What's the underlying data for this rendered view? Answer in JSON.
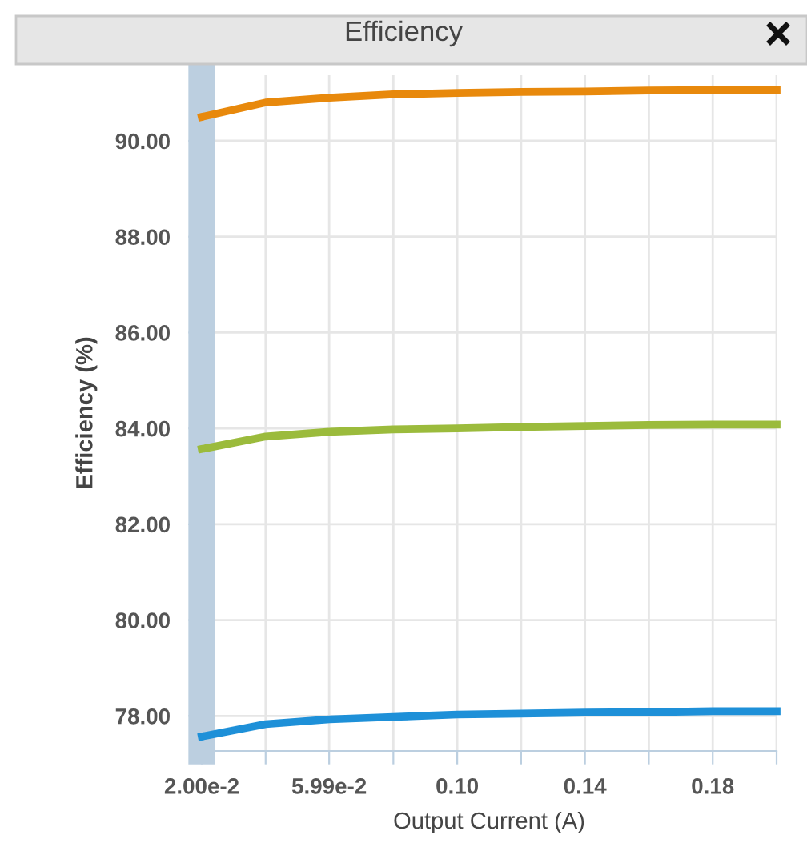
{
  "chart_data": {
    "type": "line",
    "title": "Efficiency",
    "xlabel": "Output Current (A)",
    "ylabel": "Efficiency (%)",
    "x": [
      0.02,
      0.04,
      0.06,
      0.08,
      0.1,
      0.12,
      0.14,
      0.16,
      0.18,
      0.2
    ],
    "series": [
      {
        "color": "#e8890c",
        "values": [
          90.5,
          90.8,
          90.9,
          90.97,
          91.0,
          91.02,
          91.03,
          91.05,
          91.06,
          91.06
        ]
      },
      {
        "color": "#9bbb3c",
        "values": [
          83.57,
          83.83,
          83.93,
          83.98,
          84.0,
          84.03,
          84.05,
          84.07,
          84.08,
          84.08
        ]
      },
      {
        "color": "#1e90d8",
        "values": [
          77.57,
          77.83,
          77.93,
          77.98,
          78.03,
          78.05,
          78.07,
          78.08,
          78.1,
          78.1
        ]
      }
    ],
    "xlim": [
      0.02,
      0.2
    ],
    "xticks": [
      {
        "value": 0.02,
        "label": "2.00e-2"
      },
      {
        "value": 0.04,
        "label": null
      },
      {
        "value": 0.0599,
        "label": "5.99e-2"
      },
      {
        "value": 0.08,
        "label": null
      },
      {
        "value": 0.1,
        "label": "0.10"
      },
      {
        "value": 0.12,
        "label": null
      },
      {
        "value": 0.14,
        "label": "0.14"
      },
      {
        "value": 0.16,
        "label": null
      },
      {
        "value": 0.18,
        "label": "0.18"
      },
      {
        "value": 0.2,
        "label": null
      }
    ],
    "ylim": [
      77.27,
      91.37
    ],
    "yticks": [
      {
        "value": 78,
        "label": "78.00"
      },
      {
        "value": 80,
        "label": "80.00"
      },
      {
        "value": 82,
        "label": "82.00"
      },
      {
        "value": 84,
        "label": "84.00"
      },
      {
        "value": 86,
        "label": "86.00"
      },
      {
        "value": 88,
        "label": "88.00"
      },
      {
        "value": 90,
        "label": "90.00"
      }
    ],
    "grid": true,
    "legend": false,
    "marker": "none",
    "line_style": "solid"
  }
}
